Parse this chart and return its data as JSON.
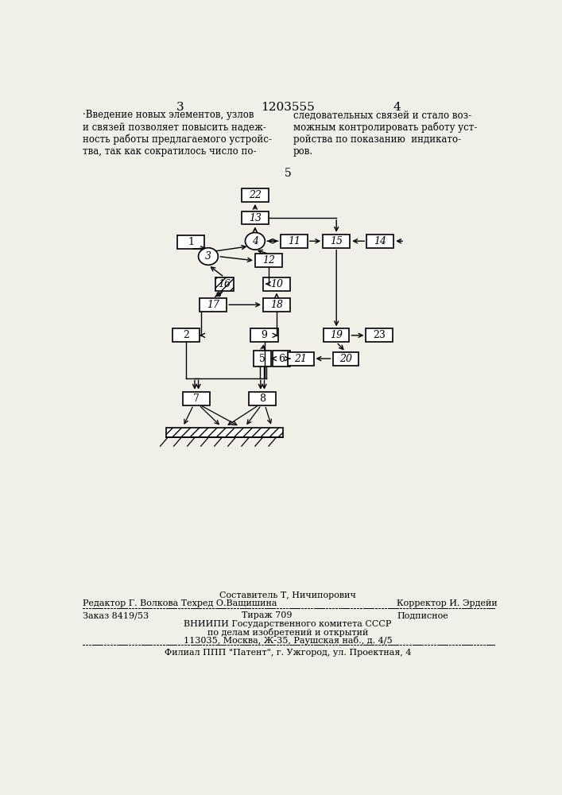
{
  "bg_color": "#f0efe8",
  "header_left_num": "3",
  "header_center_num": "1203555",
  "header_right_num": "4",
  "text_left": "·Введение новых элементов, узлов\nи связей позволяет повысить надеж-\nность работы предлагаемого устройс-\nтва, так как сократилось число по-",
  "text_right": "следовательных связей и стало воз-\nможным контролировать работу уст-\nройства по показанию  индикато-\nров.",
  "fig_num": "5",
  "footer_composer": "Составитель Т, Ничипорович",
  "footer_editor": "Редактор Г. Волкова Техред О.Ващишина",
  "footer_corrector": "Корректор И. Эрдейи",
  "footer_order": "Заказ 8419/53",
  "footer_tirazh": "Тираж 709",
  "footer_podpisnoe": "Подписное",
  "footer_vniipи": "ВНИИПИ Государственного комитета СССР",
  "footer_po_delam": "по делам изобретений и открытий",
  "footer_address": "113035, Москва, Ж-35, Раушская наб., д. 4/5",
  "footer_filial": "Филиал ППП \"Патент\", г. Ужгород, ул. Проектная, 4"
}
